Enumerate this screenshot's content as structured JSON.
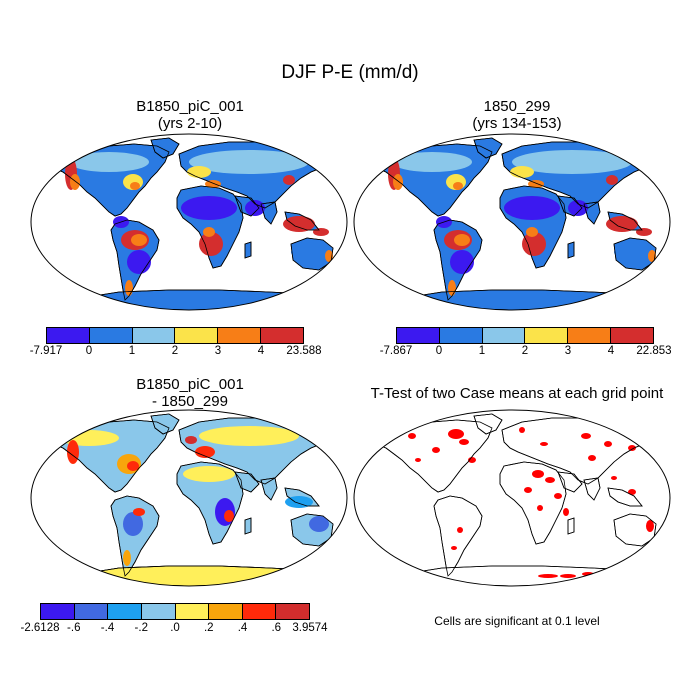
{
  "title": "DJF P-E (mm/d)",
  "panels": [
    {
      "title_lines": [
        "B1850_piC_001",
        "(yrs 2-10)"
      ]
    },
    {
      "title_lines": [
        "1850_299",
        "(yrs 134-153)"
      ]
    },
    {
      "title_lines": [
        "B1850_piC_001",
        "- 1850_299"
      ]
    },
    {
      "title_lines": [
        "T-Test of two Case means at each grid point"
      ]
    }
  ],
  "colorbars": [
    {
      "labels": [
        "-7.917",
        "0",
        "1",
        "2",
        "3",
        "4",
        "23.588"
      ],
      "colors": [
        "#3c19f0",
        "#2a7ae2",
        "#8ac7ea",
        "#fbe34a",
        "#f77e17",
        "#d42e2e"
      ]
    },
    {
      "labels": [
        "-7.867",
        "0",
        "1",
        "2",
        "3",
        "4",
        "22.853"
      ],
      "colors": [
        "#3c19f0",
        "#2a7ae2",
        "#8ac7ea",
        "#fbe34a",
        "#f77e17",
        "#d42e2e"
      ]
    },
    {
      "labels": [
        "-2.6128",
        "-.6",
        "-.4",
        "-.2",
        ".0",
        ".2",
        ".4",
        ".6",
        "3.9574"
      ],
      "colors": [
        "#3c19f0",
        "#4169e1",
        "#1ea0f0",
        "#8ac7ea",
        "#ffef5a",
        "#f8a50c",
        "#ff2a0a",
        "#d22d2d"
      ]
    }
  ],
  "significance_note": "Cells are significant at 0.1 level",
  "significance_color": "#ff0000"
}
